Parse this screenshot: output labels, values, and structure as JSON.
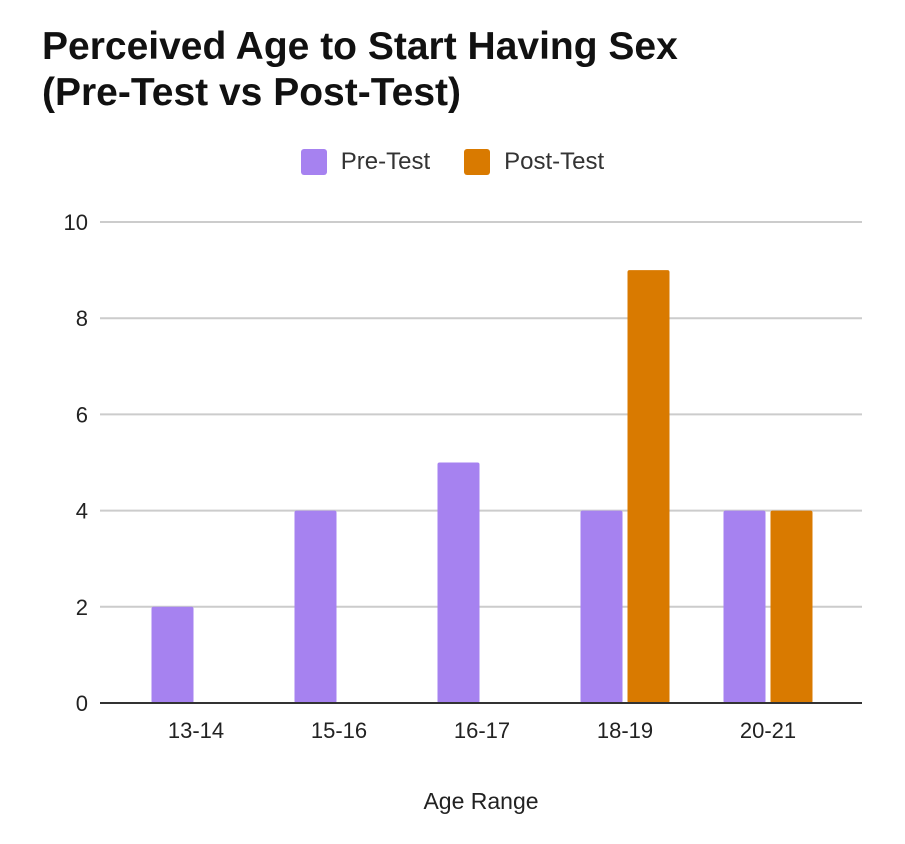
{
  "chart_data": {
    "type": "bar",
    "title_lines": [
      "Perceived Age to Start Having Sex",
      "(Pre-Test vs Post-Test)"
    ],
    "xlabel": "Age Range",
    "ylabel": "",
    "categories": [
      "13-14",
      "15-16",
      "16-17",
      "18-19",
      "20-21"
    ],
    "series": [
      {
        "name": "Pre-Test",
        "color": "#A682F0",
        "values": [
          2,
          4,
          5,
          4,
          4
        ]
      },
      {
        "name": "Post-Test",
        "color": "#D97A00",
        "values": [
          0,
          0,
          0,
          9,
          4
        ]
      }
    ],
    "ylim": [
      0,
      10
    ],
    "yticks": [
      0,
      2,
      4,
      6,
      8,
      10
    ],
    "grid": true,
    "legend_position": "top"
  }
}
